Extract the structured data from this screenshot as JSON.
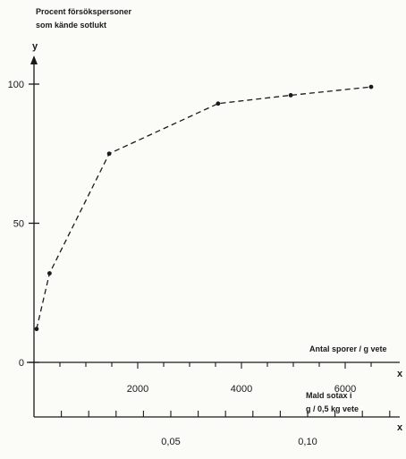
{
  "chart_data": {
    "type": "line",
    "ylabel_line1": "Procent försökspersoner",
    "ylabel_line2": "som kände sotlukt",
    "y_axis_letter": "y",
    "x_axis_letter": "x",
    "x2_axis_letter": "x",
    "xlabel": "Antal sporer / g vete",
    "x2label_line1": "Mald sotax i",
    "x2label_line2": "g / 0,5 kg vete",
    "xlim": [
      0,
      6800
    ],
    "ylim": [
      0,
      100
    ],
    "y_ticks": [
      "0",
      "50",
      "100"
    ],
    "x_ticks": [
      "2000",
      "4000",
      "6000"
    ],
    "x2_ticks": [
      "0,05",
      "0,10"
    ],
    "line_style": "dashed",
    "series": [
      {
        "x": [
          50,
          300,
          1450,
          3550,
          4950,
          6500
        ],
        "y": [
          12,
          32,
          75,
          93,
          96,
          99
        ]
      }
    ]
  }
}
